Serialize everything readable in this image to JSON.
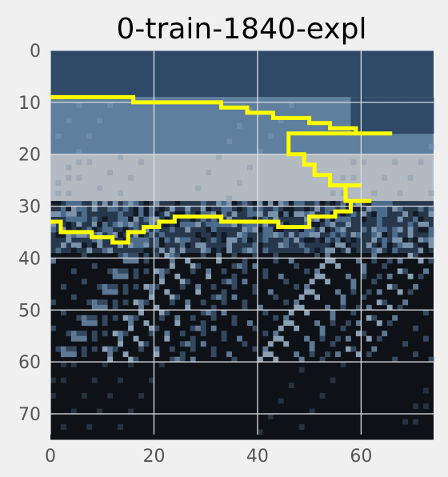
{
  "chart_data": {
    "type": "heatmap",
    "title": "0-train-1840-expl",
    "xlabel": "",
    "ylabel": "",
    "xlim": [
      0,
      74
    ],
    "ylim": [
      74,
      0
    ],
    "x_ticks": [
      0,
      20,
      40,
      60
    ],
    "y_ticks": [
      0,
      10,
      20,
      30,
      40,
      50,
      60,
      70
    ],
    "grid": true,
    "colors": {
      "figure_background": "#f0f0f0",
      "grid": "#d9dde2",
      "contour": "#ffff00",
      "band_sky": "#2f4a68",
      "band_cloud": "#5e7f9d",
      "band_light": "#b3bac1",
      "band_mid": "#27384d",
      "band_dark": "#0e1217"
    },
    "image_bands": [
      {
        "name": "sky",
        "row_start": 0,
        "row_end": 8,
        "color": "#2f4a68"
      },
      {
        "name": "cloud",
        "row_start": 9,
        "row_end": 19,
        "color": "#5e7f9d"
      },
      {
        "name": "light",
        "row_start": 20,
        "row_end": 28,
        "color": "#b3bac1"
      },
      {
        "name": "mixed",
        "row_start": 29,
        "row_end": 38,
        "color": "#27384d"
      },
      {
        "name": "dark",
        "row_start": 39,
        "row_end": 74,
        "color": "#0e1217"
      }
    ],
    "contour_upper": [
      [
        0,
        9
      ],
      [
        16,
        9
      ],
      [
        16,
        10
      ],
      [
        33,
        10
      ],
      [
        33,
        11
      ],
      [
        38,
        11
      ],
      [
        38,
        12
      ],
      [
        43,
        12
      ],
      [
        43,
        13
      ],
      [
        50,
        13
      ],
      [
        50,
        14
      ],
      [
        54,
        14
      ],
      [
        54,
        15
      ],
      [
        59,
        15
      ],
      [
        59,
        16
      ],
      [
        66,
        16
      ],
      [
        46,
        16
      ],
      [
        46,
        20
      ],
      [
        49,
        20
      ],
      [
        49,
        22
      ],
      [
        51,
        22
      ],
      [
        51,
        24
      ],
      [
        54,
        24
      ],
      [
        54,
        26
      ],
      [
        60,
        26
      ],
      [
        57,
        26
      ],
      [
        57,
        29
      ],
      [
        62,
        29
      ],
      [
        58,
        29
      ],
      [
        58,
        31
      ],
      [
        55,
        31
      ],
      [
        55,
        32
      ],
      [
        50,
        32
      ],
      [
        50,
        34
      ],
      [
        44,
        34
      ],
      [
        44,
        33
      ],
      [
        33,
        33
      ],
      [
        33,
        32
      ],
      [
        24,
        32
      ],
      [
        24,
        33
      ],
      [
        21,
        33
      ],
      [
        21,
        34
      ],
      [
        18,
        34
      ],
      [
        18,
        35
      ],
      [
        15,
        35
      ],
      [
        15,
        37
      ],
      [
        12,
        37
      ],
      [
        12,
        36
      ],
      [
        8,
        36
      ],
      [
        8,
        35
      ],
      [
        2,
        35
      ],
      [
        2,
        33
      ],
      [
        0,
        33
      ]
    ]
  }
}
